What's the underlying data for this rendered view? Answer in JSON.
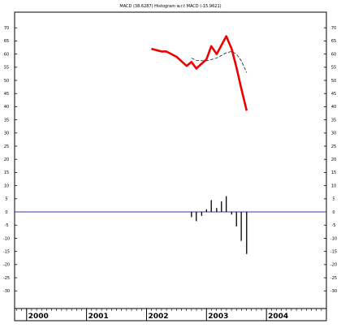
{
  "chart_data": {
    "type": "line",
    "title": "MACD (38.6287) Histogram w.r.t MACD (-15.9621)",
    "x_tick_labels": [
      "2000",
      "2001",
      "2002",
      "2003",
      "2004"
    ],
    "x_tick_years": [
      2000.0,
      2001.0,
      2002.0,
      2003.0,
      2004.0
    ],
    "x_range": [
      1999.8,
      2005.0
    ],
    "ylim": [
      -33,
      75
    ],
    "y_ticks": [
      70,
      65,
      60,
      55,
      50,
      45,
      40,
      35,
      30,
      25,
      20,
      15,
      10,
      5,
      0,
      -5,
      -10,
      -15,
      -20,
      -25,
      -30
    ],
    "grid": false,
    "series": [
      {
        "kind": "line",
        "color": "#ee0000",
        "dash": "solid",
        "points": [
          [
            2002.08,
            62.0
          ],
          [
            2002.25,
            61.0
          ],
          [
            2002.33,
            61.0
          ],
          [
            2002.5,
            59.0
          ],
          [
            2002.67,
            55.5
          ],
          [
            2002.75,
            57.0
          ],
          [
            2002.83,
            54.5
          ],
          [
            2003.0,
            58.0
          ],
          [
            2003.08,
            63.0
          ],
          [
            2003.17,
            60.0
          ],
          [
            2003.33,
            66.8
          ],
          [
            2003.42,
            62.0
          ],
          [
            2003.5,
            55.0
          ],
          [
            2003.58,
            47.0
          ],
          [
            2003.67,
            38.5
          ]
        ]
      },
      {
        "kind": "line",
        "color": "#333333",
        "dash": "dashed",
        "points": [
          [
            2002.75,
            58.5
          ],
          [
            2002.83,
            57.6
          ],
          [
            2003.0,
            57.4
          ],
          [
            2003.17,
            58.5
          ],
          [
            2003.33,
            60.5
          ],
          [
            2003.42,
            61.0
          ],
          [
            2003.5,
            60.0
          ],
          [
            2003.58,
            57.5
          ],
          [
            2003.67,
            53.0
          ]
        ]
      },
      {
        "kind": "histogram",
        "color": "#000000",
        "points": [
          [
            2002.75,
            -2.0
          ],
          [
            2002.83,
            -3.5
          ],
          [
            2002.92,
            -1.5
          ],
          [
            2003.0,
            1.0
          ],
          [
            2003.08,
            4.5
          ],
          [
            2003.17,
            1.5
          ],
          [
            2003.25,
            4.0
          ],
          [
            2003.33,
            6.0
          ],
          [
            2003.42,
            -1.0
          ],
          [
            2003.5,
            -5.5
          ],
          [
            2003.58,
            -11.0
          ],
          [
            2003.67,
            -15.9621
          ]
        ]
      }
    ],
    "reference_line": {
      "y": 0,
      "color": "#3a3aa8"
    }
  }
}
